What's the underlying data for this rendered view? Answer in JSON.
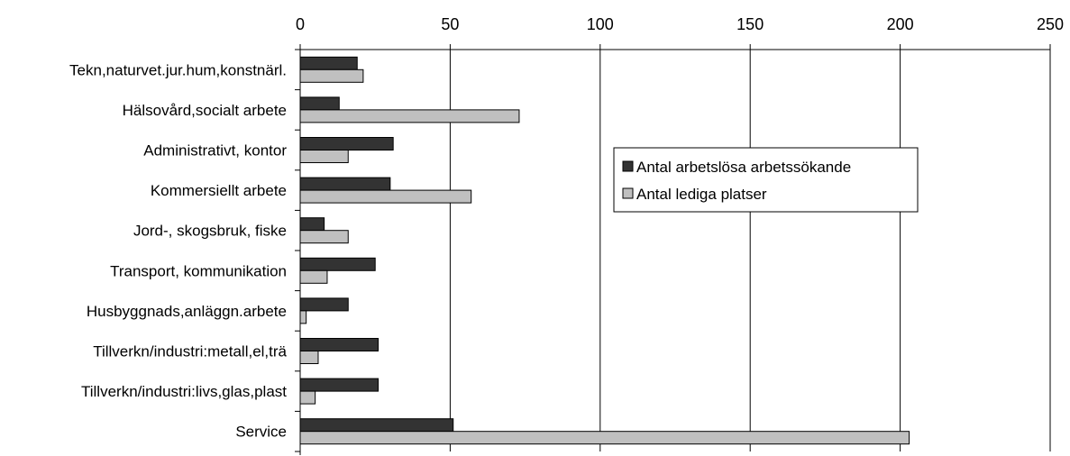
{
  "chart_data": {
    "type": "bar",
    "orientation": "horizontal",
    "title": "",
    "xlabel": "",
    "ylabel": "",
    "xlim": [
      0,
      250
    ],
    "x_ticks": [
      0,
      50,
      100,
      150,
      200,
      250
    ],
    "x_axis_position": "top",
    "grid": true,
    "legend_position": "right-center",
    "categories": [
      "Tekn,naturvet.jur.hum,konstnärl.",
      "Hälsovård,socialt arbete",
      "Administrativt, kontor",
      "Kommersiellt arbete",
      "Jord-, skogsbruk, fiske",
      "Transport, kommunikation",
      "Husbyggnads,anläggn.arbete",
      "Tillverkn/industri:metall,el,trä",
      "Tillverkn/industri:livs,glas,plast",
      "Service"
    ],
    "series": [
      {
        "name": "Antal arbetslösa arbetssökande",
        "color": "#333333",
        "values": [
          19,
          13,
          31,
          30,
          8,
          25,
          16,
          26,
          26,
          51
        ]
      },
      {
        "name": "Antal lediga platser",
        "color": "#c0c0c0",
        "values": [
          21,
          73,
          16,
          57,
          16,
          9,
          2,
          6,
          5,
          203
        ]
      }
    ]
  }
}
